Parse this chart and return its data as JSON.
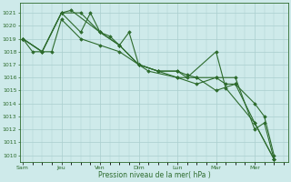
{
  "background_color": "#ceeaea",
  "grid_color": "#aacece",
  "line_color": "#2d6b2d",
  "marker_color": "#2d6b2d",
  "xlabel": "Pression niveau de la mer( hPa )",
  "ylim": [
    1009.5,
    1021.8
  ],
  "yticks": [
    1010,
    1011,
    1012,
    1013,
    1014,
    1015,
    1016,
    1017,
    1018,
    1019,
    1020,
    1021
  ],
  "day_labels": [
    "Sam",
    "Jeu",
    "Ven",
    "Dim",
    "Lun",
    "Mar",
    "Mer"
  ],
  "day_positions": [
    0,
    4,
    8,
    12,
    16,
    20,
    24
  ],
  "xlim": [
    -0.3,
    27.5
  ],
  "series1_x": [
    0,
    1,
    3,
    4,
    6,
    8,
    10,
    12,
    13,
    16,
    18,
    20,
    22,
    24,
    25,
    26
  ],
  "series1_y": [
    1019.0,
    1018.0,
    1018.0,
    1020.5,
    1019.0,
    1018.5,
    1018.0,
    1017.0,
    1016.5,
    1016.0,
    1016.0,
    1016.0,
    1016.0,
    1012.0,
    1012.5,
    1009.7
  ],
  "series2_x": [
    0,
    2,
    4,
    5,
    8,
    9,
    10,
    12,
    14,
    16,
    17,
    20,
    21,
    24,
    26
  ],
  "series2_y": [
    1019.0,
    1018.0,
    1021.0,
    1021.2,
    1019.5,
    1019.2,
    1018.5,
    1017.0,
    1016.5,
    1016.5,
    1016.0,
    1018.0,
    1015.2,
    1012.5,
    1009.7
  ],
  "series3_x": [
    0,
    2,
    4,
    6,
    7,
    8,
    10,
    11,
    12,
    14,
    16,
    17,
    18,
    20,
    22,
    24,
    25,
    26
  ],
  "series3_y": [
    1019.0,
    1018.0,
    1021.0,
    1019.5,
    1021.0,
    1019.5,
    1018.5,
    1019.5,
    1017.0,
    1016.5,
    1016.5,
    1016.2,
    1016.0,
    1015.0,
    1015.5,
    1014.0,
    1013.0,
    1010.0
  ],
  "series4_x": [
    0,
    2,
    4,
    6,
    8,
    10,
    12,
    14,
    16,
    18,
    20,
    21,
    22,
    24,
    26
  ],
  "series4_y": [
    1019.0,
    1018.0,
    1021.0,
    1021.0,
    1019.5,
    1018.5,
    1017.0,
    1016.5,
    1016.0,
    1015.5,
    1016.0,
    1015.5,
    1015.5,
    1012.5,
    1009.7
  ]
}
